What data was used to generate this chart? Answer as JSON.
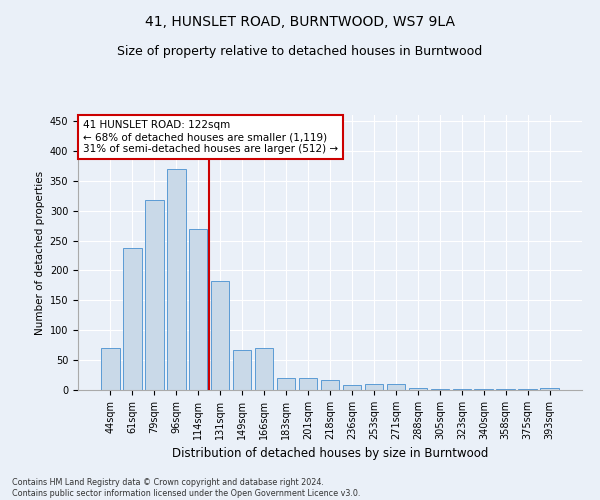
{
  "title": "41, HUNSLET ROAD, BURNTWOOD, WS7 9LA",
  "subtitle": "Size of property relative to detached houses in Burntwood",
  "xlabel": "Distribution of detached houses by size in Burntwood",
  "ylabel": "Number of detached properties",
  "categories": [
    "44sqm",
    "61sqm",
    "79sqm",
    "96sqm",
    "114sqm",
    "131sqm",
    "149sqm",
    "166sqm",
    "183sqm",
    "201sqm",
    "218sqm",
    "236sqm",
    "253sqm",
    "271sqm",
    "288sqm",
    "305sqm",
    "323sqm",
    "340sqm",
    "358sqm",
    "375sqm",
    "393sqm"
  ],
  "values": [
    70,
    237,
    317,
    370,
    270,
    183,
    67,
    70,
    20,
    20,
    17,
    8,
    10,
    10,
    4,
    2,
    2,
    2,
    2,
    2,
    4
  ],
  "bar_color": "#c9d9e8",
  "bar_edge_color": "#5b9bd5",
  "vline_x": 4.5,
  "vline_color": "#cc0000",
  "annotation_text": "41 HUNSLET ROAD: 122sqm\n← 68% of detached houses are smaller (1,119)\n31% of semi-detached houses are larger (512) →",
  "annotation_box_color": "#ffffff",
  "annotation_box_edge_color": "#cc0000",
  "ylim": [
    0,
    460
  ],
  "yticks": [
    0,
    50,
    100,
    150,
    200,
    250,
    300,
    350,
    400,
    450
  ],
  "bg_color": "#eaf0f8",
  "plot_bg_color": "#eaf0f8",
  "footer": "Contains HM Land Registry data © Crown copyright and database right 2024.\nContains public sector information licensed under the Open Government Licence v3.0.",
  "title_fontsize": 10,
  "subtitle_fontsize": 9,
  "xlabel_fontsize": 8.5,
  "ylabel_fontsize": 7.5,
  "tick_fontsize": 7,
  "annotation_fontsize": 7.5,
  "footer_fontsize": 5.8
}
